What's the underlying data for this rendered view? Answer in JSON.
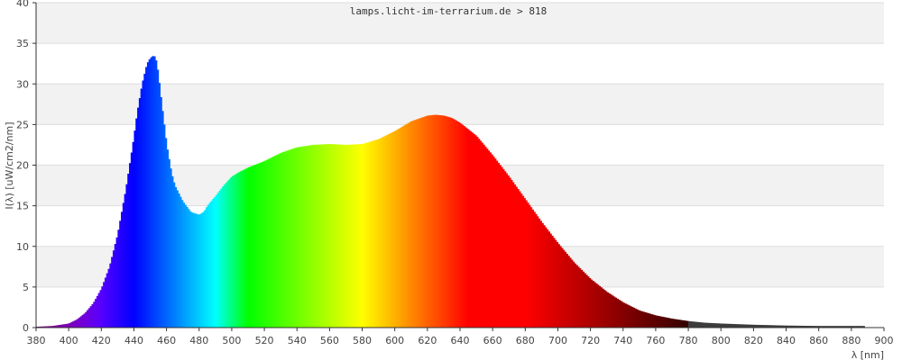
{
  "chart_data": {
    "type": "area",
    "title": "lamps.licht-im-terrarium.de > 818",
    "xlabel": "λ [nm]",
    "ylabel": "I(λ) [uW/cm2/nm]",
    "xlim": [
      380,
      900
    ],
    "ylim": [
      0,
      40
    ],
    "x_ticks": [
      "380",
      "400",
      "420",
      "440",
      "460",
      "480",
      "500",
      "520",
      "540",
      "560",
      "580",
      "600",
      "620",
      "640",
      "660",
      "680",
      "700",
      "720",
      "740",
      "760",
      "780",
      "800",
      "820",
      "840",
      "860",
      "880",
      "900"
    ],
    "y_ticks": [
      "0",
      "5",
      "10",
      "15",
      "20",
      "25",
      "30",
      "35",
      "40"
    ],
    "grid": true,
    "series": [
      {
        "x": [
          380,
          390,
          400,
          405,
          410,
          415,
          420,
          425,
          430,
          435,
          440,
          442,
          445,
          448,
          450,
          452,
          453,
          454,
          455,
          457,
          460,
          463,
          465,
          470,
          475,
          480,
          483,
          485,
          490,
          495,
          500,
          505,
          510,
          520,
          530,
          540,
          550,
          560,
          570,
          580,
          590,
          600,
          610,
          620,
          625,
          630,
          635,
          640,
          650,
          660,
          670,
          680,
          690,
          700,
          710,
          720,
          730,
          740,
          750,
          760,
          770,
          780,
          790,
          800,
          820,
          840,
          860,
          880,
          888
        ],
        "values": [
          0.1,
          0.2,
          0.5,
          1.0,
          1.8,
          3.0,
          4.8,
          7.5,
          11.5,
          17.0,
          23.5,
          26.5,
          30.0,
          32.5,
          33.2,
          33.5,
          33.3,
          32.5,
          31.0,
          27.5,
          22.5,
          19.0,
          17.5,
          15.5,
          14.2,
          13.9,
          14.3,
          15.0,
          16.2,
          17.5,
          18.6,
          19.2,
          19.7,
          20.5,
          21.5,
          22.2,
          22.5,
          22.6,
          22.5,
          22.6,
          23.2,
          24.2,
          25.4,
          26.1,
          26.2,
          26.1,
          25.8,
          25.2,
          23.6,
          21.2,
          18.6,
          15.8,
          13.0,
          10.4,
          8.0,
          6.0,
          4.4,
          3.1,
          2.1,
          1.5,
          1.1,
          0.8,
          0.6,
          0.5,
          0.35,
          0.25,
          0.2,
          0.2,
          0.2
        ]
      }
    ]
  }
}
